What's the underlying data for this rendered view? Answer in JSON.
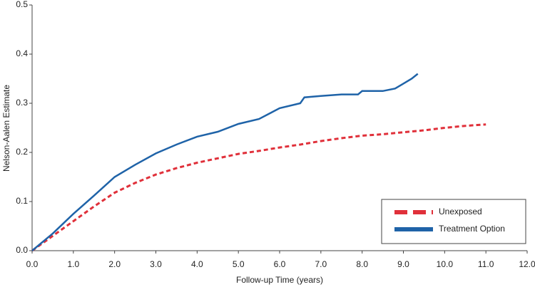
{
  "chart_data": {
    "type": "line",
    "xlabel": "Follow-up Time (years)",
    "ylabel": "Nelson-Aalen Estimate",
    "xlim": [
      0,
      12
    ],
    "ylim": [
      0,
      0.5
    ],
    "xticks": [
      {
        "value": 0,
        "label": "0.0"
      },
      {
        "value": 1,
        "label": "1.0"
      },
      {
        "value": 2,
        "label": "2.0"
      },
      {
        "value": 3,
        "label": "3.0"
      },
      {
        "value": 4,
        "label": "4.0"
      },
      {
        "value": 5,
        "label": "5.0"
      },
      {
        "value": 6,
        "label": "6.0"
      },
      {
        "value": 7,
        "label": "7.0"
      },
      {
        "value": 8,
        "label": "8.0"
      },
      {
        "value": 9,
        "label": "9.0"
      },
      {
        "value": 10,
        "label": "10.0"
      },
      {
        "value": 11,
        "label": "11.0"
      },
      {
        "value": 12,
        "label": "12.0"
      }
    ],
    "yticks": [
      {
        "value": 0,
        "label": "0.0"
      },
      0.1,
      0.2,
      0.3,
      0.4,
      0.5
    ],
    "legend": "lower right",
    "series": [
      {
        "name": "Unexposed",
        "color": "#e0303a",
        "dashed": true,
        "x": [
          0,
          0.5,
          1.0,
          1.5,
          2.0,
          2.5,
          3.0,
          3.5,
          4.0,
          4.5,
          5.0,
          5.5,
          6.0,
          6.5,
          7.0,
          7.5,
          8.0,
          8.5,
          9.0,
          9.5,
          10.0,
          10.5,
          11.0
        ],
        "values": [
          0,
          0.03,
          0.06,
          0.09,
          0.118,
          0.138,
          0.155,
          0.168,
          0.179,
          0.188,
          0.197,
          0.203,
          0.21,
          0.216,
          0.223,
          0.229,
          0.234,
          0.237,
          0.241,
          0.245,
          0.25,
          0.254,
          0.257
        ]
      },
      {
        "name": "Treatment Option",
        "color": "#1f63a8",
        "dashed": false,
        "x": [
          0,
          0.5,
          1.0,
          1.5,
          2.0,
          2.5,
          3.0,
          3.5,
          4.0,
          4.5,
          5.0,
          5.5,
          6.0,
          6.5,
          6.6,
          7.0,
          7.5,
          7.9,
          8.0,
          8.5,
          8.8,
          9.0,
          9.2,
          9.35
        ],
        "values": [
          0,
          0.035,
          0.075,
          0.112,
          0.15,
          0.175,
          0.198,
          0.216,
          0.232,
          0.242,
          0.258,
          0.268,
          0.29,
          0.3,
          0.312,
          0.315,
          0.318,
          0.318,
          0.325,
          0.325,
          0.33,
          0.34,
          0.35,
          0.36
        ]
      }
    ]
  }
}
